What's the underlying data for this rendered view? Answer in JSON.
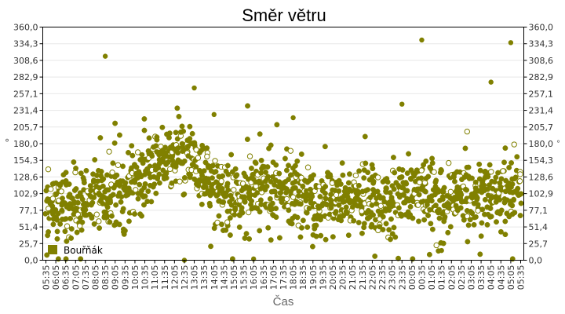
{
  "chart_data": {
    "type": "scatter",
    "title": "Směr větru",
    "xlabel": "Čas",
    "ylabel": "°",
    "y2label": "°",
    "ylim": [
      0,
      360
    ],
    "yticks": [
      "0,0",
      "25,7",
      "51,4",
      "77,1",
      "102,9",
      "128,6",
      "154,3",
      "180,0",
      "205,7",
      "231,4",
      "257,1",
      "282,9",
      "308,6",
      "334,3",
      "360,0"
    ],
    "xticks": [
      "05:35",
      "06:05",
      "06:35",
      "07:05",
      "07:35",
      "08:05",
      "08:35",
      "09:05",
      "09:35",
      "10:05",
      "10:35",
      "11:05",
      "11:35",
      "12:05",
      "12:35",
      "13:05",
      "13:35",
      "14:05",
      "14:35",
      "15:05",
      "15:35",
      "16:05",
      "16:35",
      "17:05",
      "17:35",
      "18:05",
      "18:35",
      "19:05",
      "19:35",
      "20:05",
      "20:35",
      "21:05",
      "21:35",
      "22:05",
      "22:35",
      "23:05",
      "23:35",
      "00:05",
      "00:35",
      "01:05",
      "01:35",
      "02:05",
      "02:35",
      "03:05",
      "03:35",
      "04:05",
      "04:35",
      "05:05",
      "05:35"
    ],
    "grid": true,
    "legend_position": "lower-left",
    "series": [
      {
        "name": "Bouřňák",
        "color": "#808000",
        "trend": [
          {
            "x": "05:35",
            "y": 90
          },
          {
            "x": "06:35",
            "y": 85
          },
          {
            "x": "07:35",
            "y": 95
          },
          {
            "x": "08:35",
            "y": 100
          },
          {
            "x": "09:35",
            "y": 105
          },
          {
            "x": "10:35",
            "y": 135
          },
          {
            "x": "11:35",
            "y": 155
          },
          {
            "x": "12:05",
            "y": 165
          },
          {
            "x": "12:35",
            "y": 160
          },
          {
            "x": "13:05",
            "y": 150
          },
          {
            "x": "13:35",
            "y": 120
          },
          {
            "x": "14:35",
            "y": 100
          },
          {
            "x": "15:35",
            "y": 100
          },
          {
            "x": "16:35",
            "y": 110
          },
          {
            "x": "17:35",
            "y": 105
          },
          {
            "x": "18:35",
            "y": 100
          },
          {
            "x": "19:35",
            "y": 90
          },
          {
            "x": "20:35",
            "y": 95
          },
          {
            "x": "21:35",
            "y": 100
          },
          {
            "x": "22:35",
            "y": 85
          },
          {
            "x": "23:35",
            "y": 100
          },
          {
            "x": "00:35",
            "y": 105
          },
          {
            "x": "01:35",
            "y": 95
          },
          {
            "x": "02:35",
            "y": 100
          },
          {
            "x": "03:35",
            "y": 95
          },
          {
            "x": "04:35",
            "y": 100
          },
          {
            "x": "05:35",
            "y": 115
          }
        ],
        "outliers": [
          {
            "x": "08:35",
            "y": 315
          },
          {
            "x": "13:05",
            "y": 266
          },
          {
            "x": "00:35",
            "y": 340
          },
          {
            "x": "05:05",
            "y": 336
          },
          {
            "x": "04:05",
            "y": 275
          },
          {
            "x": "23:35",
            "y": 241
          },
          {
            "x": "12:35",
            "y": 0
          },
          {
            "x": "16:05",
            "y": 2
          },
          {
            "x": "14:05",
            "y": 225
          },
          {
            "x": "18:05",
            "y": 220
          },
          {
            "x": "01:35",
            "y": 15
          }
        ]
      }
    ]
  },
  "legend": {
    "label": "Bouřňák",
    "color": "#808000"
  }
}
